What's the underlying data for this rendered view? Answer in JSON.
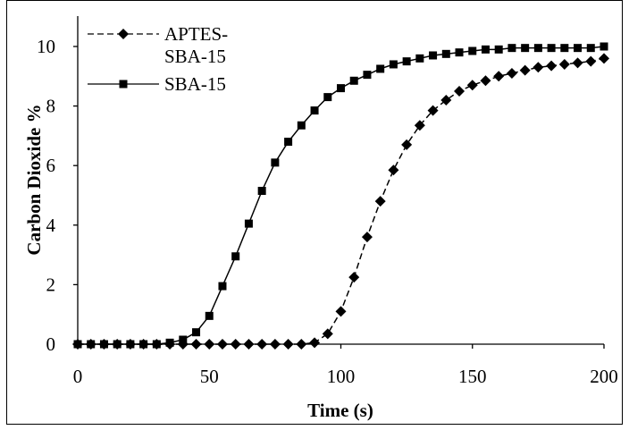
{
  "chart_data": {
    "type": "line",
    "xlabel": "Time (s)",
    "ylabel": "Carbon Dioxide %",
    "xlim": [
      0,
      200
    ],
    "ylim": [
      0,
      10
    ],
    "xticks": [
      0,
      50,
      100,
      150,
      200
    ],
    "yticks": [
      0,
      2,
      4,
      6,
      8,
      10
    ],
    "grid": false,
    "legend": {
      "position": "top-left",
      "entries": [
        {
          "line1": "APTES-",
          "line2": "SBA-15"
        },
        {
          "line1": "SBA-15",
          "line2": ""
        }
      ]
    },
    "x": [
      0,
      5,
      10,
      15,
      20,
      25,
      30,
      35,
      40,
      45,
      50,
      55,
      60,
      65,
      70,
      75,
      80,
      85,
      90,
      95,
      100,
      105,
      110,
      115,
      120,
      125,
      130,
      135,
      140,
      145,
      150,
      155,
      160,
      165,
      170,
      175,
      180,
      185,
      190,
      195,
      200
    ],
    "series": [
      {
        "name": "APTES-SBA-15",
        "marker": "diamond",
        "line_style": "dashed",
        "color": "#000000",
        "values": [
          0,
          0,
          0,
          0,
          0,
          0,
          0,
          0,
          0,
          0,
          0,
          0,
          0,
          0,
          0,
          0,
          0,
          0,
          0.05,
          0.35,
          1.1,
          2.25,
          3.6,
          4.8,
          5.85,
          6.7,
          7.35,
          7.85,
          8.2,
          8.5,
          8.7,
          8.85,
          9.0,
          9.1,
          9.2,
          9.3,
          9.35,
          9.4,
          9.45,
          9.5,
          9.6
        ]
      },
      {
        "name": "SBA-15",
        "marker": "square",
        "line_style": "solid",
        "color": "#000000",
        "values": [
          0,
          0,
          0,
          0,
          0,
          0,
          0,
          0.05,
          0.15,
          0.4,
          0.95,
          1.95,
          2.95,
          4.05,
          5.15,
          6.1,
          6.8,
          7.35,
          7.85,
          8.3,
          8.6,
          8.85,
          9.05,
          9.25,
          9.4,
          9.5,
          9.6,
          9.7,
          9.75,
          9.8,
          9.85,
          9.9,
          9.9,
          9.95,
          9.95,
          9.95,
          9.95,
          9.95,
          9.95,
          9.95,
          10.0
        ]
      }
    ]
  }
}
